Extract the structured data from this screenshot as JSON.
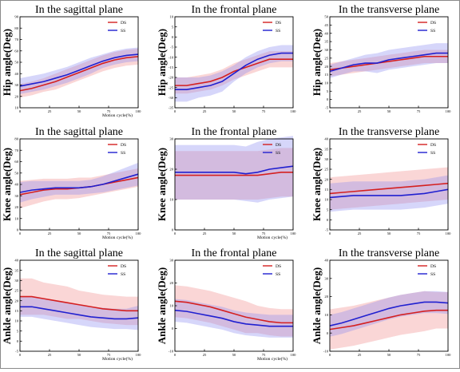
{
  "figure": {
    "band_alpha": 0.35,
    "colors": {
      "DS": "#d42020",
      "SS": "#2020d0",
      "DS_band": "#f08a8a",
      "SS_band": "#8a8af2"
    }
  },
  "chart_data": [
    {
      "type": "line",
      "title": "In the sagittal plane",
      "ylabel": "Hip angle(Deg)",
      "xlabel": "Motion cycle(%)",
      "xlim": [
        0,
        100
      ],
      "ylim": [
        10,
        90
      ],
      "xticks": [
        0,
        25,
        50,
        75,
        100
      ],
      "yticks": [
        10,
        20,
        30,
        40,
        50,
        60,
        70,
        80,
        90
      ],
      "legend": "top-right",
      "x": [
        0,
        10,
        20,
        30,
        40,
        50,
        60,
        70,
        80,
        90,
        100
      ],
      "series": [
        {
          "name": "DS",
          "values": [
            25,
            27,
            30,
            33,
            37,
            41,
            45,
            49,
            52,
            54,
            55
          ],
          "sd": [
            6,
            6,
            6,
            7,
            7,
            7,
            7,
            7,
            7,
            7,
            7
          ]
        },
        {
          "name": "SS",
          "values": [
            29,
            31,
            33,
            36,
            39,
            43,
            47,
            51,
            54,
            56,
            57
          ],
          "sd": [
            7,
            7,
            7,
            7,
            7,
            7,
            7,
            6,
            6,
            6,
            6
          ]
        }
      ]
    },
    {
      "type": "line",
      "title": "In the frontal plane",
      "ylabel": "Hip angle(Deg)",
      "xlabel": "",
      "xlim": [
        0,
        100
      ],
      "ylim": [
        -35,
        10
      ],
      "xticks": [
        0,
        25,
        50,
        75,
        100
      ],
      "yticks": [
        -35,
        -30,
        -25,
        -20,
        -15,
        -10,
        -5,
        0,
        5,
        10
      ],
      "legend": "top-right",
      "x": [
        0,
        10,
        20,
        30,
        40,
        50,
        60,
        70,
        80,
        90,
        100
      ],
      "series": [
        {
          "name": "DS",
          "values": [
            -24,
            -24,
            -23,
            -22,
            -20,
            -17,
            -15,
            -13,
            -11,
            -11,
            -11
          ],
          "sd": [
            4,
            4,
            4,
            4,
            4,
            4,
            4,
            4,
            4,
            4,
            4
          ]
        },
        {
          "name": "SS",
          "values": [
            -26,
            -26,
            -25,
            -24,
            -22,
            -18,
            -14,
            -11,
            -9,
            -8,
            -8
          ],
          "sd": [
            6,
            6,
            5,
            5,
            5,
            4,
            4,
            4,
            4,
            4,
            4
          ]
        }
      ]
    },
    {
      "type": "line",
      "title": "In the transverse plane",
      "ylabel": "Hip angle(Deg)",
      "xlabel": "",
      "xlim": [
        0,
        100
      ],
      "ylim": [
        -5,
        50
      ],
      "xticks": [
        0,
        25,
        50,
        75,
        100
      ],
      "yticks": [
        -5,
        0,
        5,
        10,
        15,
        20,
        25,
        30,
        35,
        40,
        45,
        50
      ],
      "legend": "top-right",
      "x": [
        0,
        10,
        20,
        30,
        40,
        50,
        60,
        70,
        80,
        90,
        100
      ],
      "series": [
        {
          "name": "DS",
          "values": [
            18,
            19,
            20,
            21,
            22,
            23,
            24,
            25,
            26,
            26,
            26
          ],
          "sd": [
            4,
            4,
            4,
            4,
            4,
            4,
            4,
            4,
            4,
            4,
            4
          ]
        },
        {
          "name": "SS",
          "values": [
            17,
            19,
            21,
            22,
            22,
            24,
            25,
            26,
            27,
            28,
            28
          ],
          "sd": [
            4,
            4,
            4,
            5,
            6,
            6,
            6,
            6,
            6,
            6,
            6
          ]
        }
      ]
    },
    {
      "type": "line",
      "title": "In the sagittal plane",
      "ylabel": "Knee angle(Deg)",
      "xlabel": "Motion cycle(%)",
      "xlim": [
        0,
        100
      ],
      "ylim": [
        0,
        80
      ],
      "xticks": [
        0,
        25,
        50,
        75,
        100
      ],
      "yticks": [
        0,
        10,
        20,
        30,
        40,
        50,
        60,
        70,
        80
      ],
      "legend": "top-right",
      "x": [
        0,
        10,
        20,
        30,
        40,
        50,
        60,
        70,
        80,
        90,
        100
      ],
      "series": [
        {
          "name": "DS",
          "values": [
            31,
            33,
            35,
            36,
            36,
            37,
            38,
            40,
            42,
            44,
            46
          ],
          "sd": [
            12,
            11,
            10,
            9,
            9,
            9,
            8,
            8,
            8,
            8,
            8
          ]
        },
        {
          "name": "SS",
          "values": [
            33,
            35,
            36,
            37,
            37,
            37,
            38,
            40,
            43,
            46,
            49
          ],
          "sd": [
            9,
            8,
            7,
            6,
            6,
            6,
            6,
            7,
            8,
            9,
            10
          ]
        }
      ]
    },
    {
      "type": "line",
      "title": "In the frontal plane",
      "ylabel": "Knee angle(Deg)",
      "xlabel": "Motion cycle(%)",
      "xlim": [
        0,
        100
      ],
      "ylim": [
        0,
        30
      ],
      "xticks": [
        0,
        25,
        50,
        75,
        100
      ],
      "yticks": [
        0,
        10,
        20,
        30
      ],
      "legend": "top-right",
      "x": [
        0,
        10,
        20,
        30,
        40,
        50,
        60,
        70,
        80,
        90,
        100
      ],
      "series": [
        {
          "name": "DS",
          "values": [
            18,
            18,
            18,
            18,
            18,
            18,
            18,
            18,
            18.5,
            19,
            19
          ],
          "sd": [
            8,
            8,
            8,
            8,
            8,
            8,
            8,
            8,
            8,
            8,
            8
          ]
        },
        {
          "name": "SS",
          "values": [
            19,
            19,
            19,
            19,
            19,
            19,
            18.5,
            19,
            20,
            20.5,
            21
          ],
          "sd": [
            9,
            9,
            9,
            9,
            9,
            9,
            9,
            10,
            10,
            10,
            10
          ]
        }
      ]
    },
    {
      "type": "line",
      "title": "In the transverse plane",
      "ylabel": "Knee angle(Deg)",
      "xlabel": "",
      "xlim": [
        0,
        100
      ],
      "ylim": [
        -5,
        40
      ],
      "xticks": [
        0,
        25,
        50,
        75,
        100
      ],
      "yticks": [
        -5,
        0,
        5,
        10,
        15,
        20,
        25,
        30,
        35,
        40
      ],
      "legend": "top-right",
      "x": [
        0,
        10,
        20,
        30,
        40,
        50,
        60,
        70,
        80,
        90,
        100
      ],
      "series": [
        {
          "name": "DS",
          "values": [
            13,
            13.5,
            14,
            14.5,
            15,
            15.5,
            16,
            16.5,
            17,
            17.5,
            18
          ],
          "sd": [
            8,
            8,
            8,
            8,
            8,
            8,
            8,
            8,
            8,
            8,
            8
          ]
        },
        {
          "name": "SS",
          "values": [
            11,
            11.5,
            12,
            12,
            12,
            12,
            12,
            12.5,
            13,
            14,
            15
          ],
          "sd": [
            7,
            7,
            7,
            7,
            7,
            7,
            7,
            7,
            7,
            7,
            7
          ]
        }
      ]
    },
    {
      "type": "line",
      "title": "In the sagittal plane",
      "ylabel": "Ankle angle(Deg)",
      "xlabel": "Motion cycle(%)",
      "xlim": [
        0,
        100
      ],
      "ylim": [
        -5,
        40
      ],
      "xticks": [
        0,
        25,
        50,
        75,
        100
      ],
      "yticks": [
        -5,
        0,
        5,
        10,
        15,
        20,
        25,
        30,
        35,
        40
      ],
      "legend": "top-right",
      "x": [
        0,
        10,
        20,
        30,
        40,
        50,
        60,
        70,
        80,
        90,
        100
      ],
      "series": [
        {
          "name": "DS",
          "values": [
            22,
            22,
            21,
            20,
            19,
            18,
            17,
            16,
            15.5,
            15,
            15
          ],
          "sd": [
            9,
            9,
            8,
            8,
            8,
            7,
            7,
            7,
            7,
            7,
            7
          ]
        },
        {
          "name": "SS",
          "values": [
            17,
            17,
            16,
            15,
            14,
            13,
            12,
            11.5,
            11,
            11,
            11.5
          ],
          "sd": [
            5,
            5,
            5,
            5,
            5,
            5,
            5,
            5,
            5,
            5,
            6
          ]
        }
      ]
    },
    {
      "type": "line",
      "title": "In the frontal plane",
      "ylabel": "Ankle angle(Deg)",
      "xlabel": "Motion cycle(%)",
      "xlim": [
        0,
        100
      ],
      "ylim": [
        -10,
        30
      ],
      "xticks": [
        0,
        25,
        50,
        75,
        100
      ],
      "yticks": [
        -10,
        0,
        10,
        20,
        30
      ],
      "legend": "top-right",
      "x": [
        0,
        10,
        20,
        30,
        40,
        50,
        60,
        70,
        80,
        90,
        100
      ],
      "series": [
        {
          "name": "DS",
          "values": [
            12,
            11.5,
            10.5,
            9.5,
            8,
            6.5,
            5,
            4,
            3,
            2.5,
            2.5
          ],
          "sd": [
            7,
            7,
            7,
            7,
            7,
            7,
            7,
            6,
            6,
            6,
            6
          ]
        },
        {
          "name": "SS",
          "values": [
            8,
            7.5,
            6.5,
            5.5,
            4.5,
            3,
            2,
            1.5,
            1,
            1,
            1
          ],
          "sd": [
            5,
            5,
            5,
            5,
            5,
            5,
            5,
            5,
            5,
            5,
            5
          ]
        }
      ]
    },
    {
      "type": "line",
      "title": "In the transverse plane",
      "ylabel": "Ankle angle(Deg)",
      "xlabel": "",
      "xlim": [
        0,
        100
      ],
      "ylim": [
        -10,
        40
      ],
      "xticks": [
        0,
        25,
        50,
        75,
        100
      ],
      "yticks": [
        -10,
        0,
        10,
        20,
        30,
        40
      ],
      "legend": "top-right",
      "x": [
        0,
        10,
        20,
        30,
        40,
        50,
        60,
        70,
        80,
        90,
        100
      ],
      "series": [
        {
          "name": "DS",
          "values": [
            2,
            3,
            4,
            5.5,
            7,
            8.5,
            10,
            11,
            12,
            12.5,
            12.5
          ],
          "sd": [
            11,
            11,
            11,
            11,
            11,
            11,
            11,
            11,
            11,
            10,
            10
          ]
        },
        {
          "name": "SS",
          "values": [
            4,
            5.5,
            7.5,
            9.5,
            11.5,
            13.5,
            15,
            16,
            17,
            17,
            16.5
          ],
          "sd": [
            6,
            6,
            6,
            6,
            6,
            6,
            6,
            6,
            6,
            6,
            6
          ]
        }
      ]
    }
  ]
}
